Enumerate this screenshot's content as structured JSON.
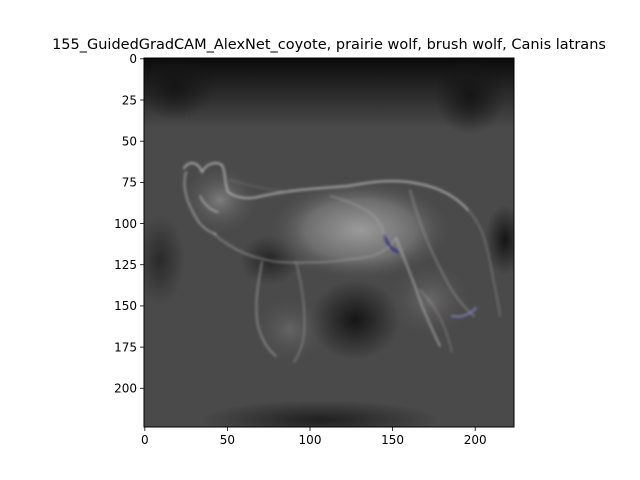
{
  "chart_data": {
    "type": "heatmap",
    "title": "155_GuidedGradCAM_AlexNet_coyote, prairie wolf, brush wolf, Canis latrans",
    "xlabel": "",
    "ylabel": "",
    "image_size": [
      224,
      224
    ],
    "xlim": [
      -0.5,
      223.5
    ],
    "ylim": [
      223.5,
      -0.5
    ],
    "xticks": [
      0,
      50,
      100,
      150,
      200
    ],
    "yticks": [
      0,
      25,
      50,
      75,
      100,
      125,
      150,
      175,
      200
    ],
    "colormap": "grayscale",
    "grid": false,
    "legend": "none",
    "content": "Guided Grad-CAM saliency image of a coyote"
  },
  "colors": {
    "background": "#ffffff",
    "axis": "#000000",
    "image_dark": "#0d0d0d",
    "image_mid": "#4a4a4a",
    "image_light": "#8a8a8a"
  }
}
